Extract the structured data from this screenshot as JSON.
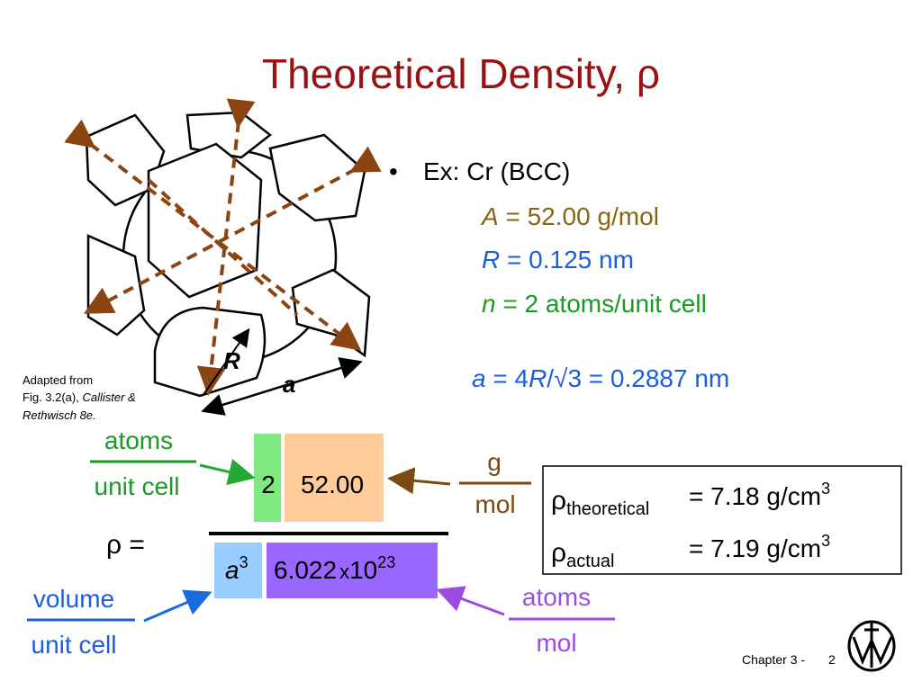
{
  "title": "Theoretical Density, ρ",
  "example": {
    "bullet": "Ex: Cr (BCC)",
    "lines": [
      {
        "symbol": "A",
        "text": " = 52.00 g/mol"
      },
      {
        "symbol": "R",
        "text": " = 0.125 nm"
      },
      {
        "symbol": "n",
        "text": " = 2 atoms/unit cell"
      }
    ],
    "lattice": {
      "symbol": "a",
      "eq": " = 4",
      "radius": "R",
      "rest": "/√3 = 0.2887 nm"
    }
  },
  "figure": {
    "labels": {
      "radius": "R",
      "edge": "a"
    },
    "caption": {
      "line1": "Adapted from",
      "line2": "Fig. 3.2(a), ",
      "authors": "Callister &",
      "book": "Rethwisch 8e."
    }
  },
  "formula": {
    "lhs": "ρ =",
    "numerator": {
      "n": "2",
      "A": "52.00"
    },
    "denominator": {
      "a": "a",
      "a_exp": "3",
      "avogadro": "6.022",
      "times": "x",
      "base": "10",
      "exp": "23"
    },
    "units": {
      "n": {
        "top": "atoms",
        "bottom": "unit cell"
      },
      "A": {
        "top": "g",
        "bottom": "mol"
      },
      "volume": {
        "top": "volume",
        "bottom": "unit cell"
      },
      "avogadro": {
        "top": "atoms",
        "bottom": "mol"
      }
    }
  },
  "results": [
    {
      "symbol": "ρ",
      "subscript": "theoretical",
      "value": "= 7.18 g/cm",
      "exp": "3"
    },
    {
      "symbol": "ρ",
      "subscript": "actual",
      "value": "= 7.19 g/cm",
      "exp": "3"
    }
  ],
  "footer": {
    "chapter": "Chapter 3 -",
    "page": "2"
  }
}
